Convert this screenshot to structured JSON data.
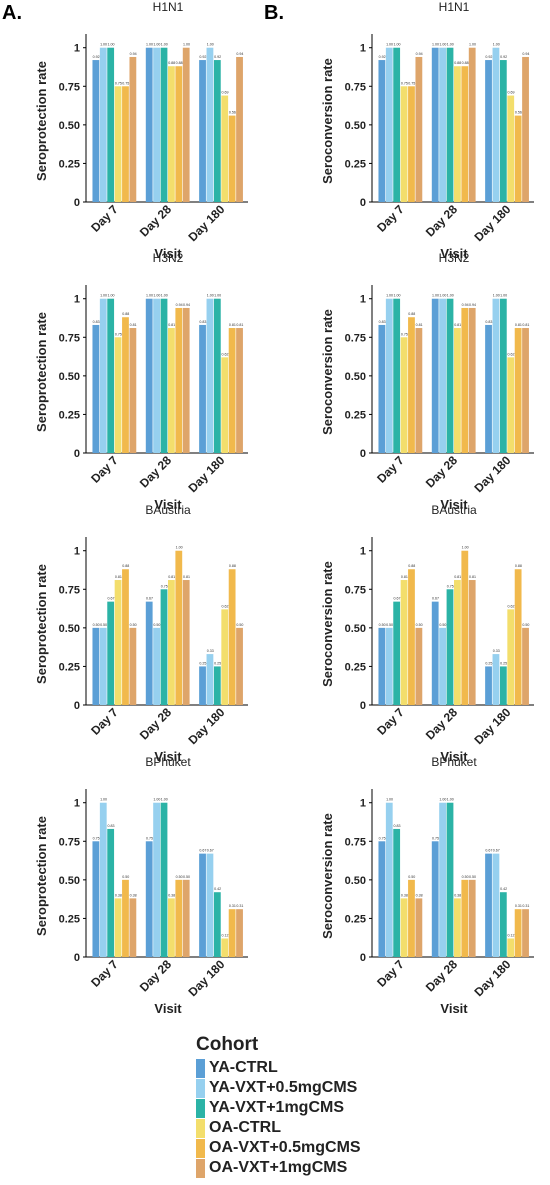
{
  "panel_letters": [
    "A.",
    "B."
  ],
  "legend": {
    "title": "Cohort",
    "entries": [
      {
        "label": "YA-CTRL",
        "color": "#5b9fd6"
      },
      {
        "label": "YA-VXT+0.5mgCMS",
        "color": "#96d0ef"
      },
      {
        "label": "YA-VXT+1mgCMS",
        "color": "#2bb3a6"
      },
      {
        "label": "OA-CTRL",
        "color": "#f3de6c"
      },
      {
        "label": "OA-VXT+0.5mgCMS",
        "color": "#f1b94c"
      },
      {
        "label": "OA-VXT+1mgCMS",
        "color": "#dea56a"
      }
    ]
  },
  "chart_data": [
    {
      "type": "bar",
      "panel": "A.",
      "title": "H1N1",
      "xlabel": "Visit",
      "ylabel": "Seroprotection rate",
      "categories": [
        "Day 7",
        "Day 28",
        "Day 180"
      ],
      "ylim": [
        0,
        1.05
      ],
      "yticks": [
        "0",
        "0.25",
        "0.50",
        "0.75",
        "1"
      ],
      "series": [
        {
          "name": "YA-CTRL",
          "values": [
            0.92,
            1.0,
            0.92
          ]
        },
        {
          "name": "YA-VXT+0.5mgCMS",
          "values": [
            1.0,
            1.0,
            1.0
          ]
        },
        {
          "name": "YA-VXT+1mgCMS",
          "values": [
            1.0,
            1.0,
            0.92
          ]
        },
        {
          "name": "OA-CTRL",
          "values": [
            0.75,
            0.88,
            0.69
          ]
        },
        {
          "name": "OA-VXT+0.5mgCMS",
          "values": [
            0.75,
            0.88,
            0.56
          ]
        },
        {
          "name": "OA-VXT+1mgCMS",
          "values": [
            0.94,
            1.0,
            0.94
          ]
        }
      ]
    },
    {
      "type": "bar",
      "panel": "B.",
      "title": "H1N1",
      "xlabel": "Visit",
      "ylabel": "Seroconversion rate",
      "categories": [
        "Day 7",
        "Day 28",
        "Day 180"
      ],
      "ylim": [
        0,
        1.05
      ],
      "yticks": [
        "0",
        "0.25",
        "0.50",
        "0.75",
        "1"
      ],
      "series": [
        {
          "name": "YA-CTRL",
          "values": [
            0.92,
            1.0,
            0.92
          ]
        },
        {
          "name": "YA-VXT+0.5mgCMS",
          "values": [
            1.0,
            1.0,
            1.0
          ]
        },
        {
          "name": "YA-VXT+1mgCMS",
          "values": [
            1.0,
            1.0,
            0.92
          ]
        },
        {
          "name": "OA-CTRL",
          "values": [
            0.75,
            0.88,
            0.69
          ]
        },
        {
          "name": "OA-VXT+0.5mgCMS",
          "values": [
            0.75,
            0.88,
            0.56
          ]
        },
        {
          "name": "OA-VXT+1mgCMS",
          "values": [
            0.94,
            1.0,
            0.94
          ]
        }
      ]
    },
    {
      "type": "bar",
      "panel": "A.",
      "title": "H3N2",
      "xlabel": "Visit",
      "ylabel": "Seroprotection rate",
      "categories": [
        "Day 7",
        "Day 28",
        "Day 180"
      ],
      "ylim": [
        0,
        1.05
      ],
      "yticks": [
        "0",
        "0.25",
        "0.50",
        "0.75",
        "1"
      ],
      "series": [
        {
          "name": "YA-CTRL",
          "values": [
            0.83,
            1.0,
            0.83
          ]
        },
        {
          "name": "YA-VXT+0.5mgCMS",
          "values": [
            1.0,
            1.0,
            1.0
          ]
        },
        {
          "name": "YA-VXT+1mgCMS",
          "values": [
            1.0,
            1.0,
            1.0
          ]
        },
        {
          "name": "OA-CTRL",
          "values": [
            0.75,
            0.81,
            0.62
          ]
        },
        {
          "name": "OA-VXT+0.5mgCMS",
          "values": [
            0.88,
            0.94,
            0.81
          ]
        },
        {
          "name": "OA-VXT+1mgCMS",
          "values": [
            0.81,
            0.94,
            0.81
          ]
        }
      ]
    },
    {
      "type": "bar",
      "panel": "B.",
      "title": "H3N2",
      "xlabel": "Visit",
      "ylabel": "Seroconversion rate",
      "categories": [
        "Day 7",
        "Day 28",
        "Day 180"
      ],
      "ylim": [
        0,
        1.05
      ],
      "yticks": [
        "0",
        "0.25",
        "0.50",
        "0.75",
        "1"
      ],
      "series": [
        {
          "name": "YA-CTRL",
          "values": [
            0.83,
            1.0,
            0.83
          ]
        },
        {
          "name": "YA-VXT+0.5mgCMS",
          "values": [
            1.0,
            1.0,
            1.0
          ]
        },
        {
          "name": "YA-VXT+1mgCMS",
          "values": [
            1.0,
            1.0,
            1.0
          ]
        },
        {
          "name": "OA-CTRL",
          "values": [
            0.75,
            0.81,
            0.62
          ]
        },
        {
          "name": "OA-VXT+0.5mgCMS",
          "values": [
            0.88,
            0.94,
            0.81
          ]
        },
        {
          "name": "OA-VXT+1mgCMS",
          "values": [
            0.81,
            0.94,
            0.81
          ]
        }
      ]
    },
    {
      "type": "bar",
      "panel": "A.",
      "title": "BAustria",
      "xlabel": "Visit",
      "ylabel": "Seroprotection rate",
      "categories": [
        "Day 7",
        "Day 28",
        "Day 180"
      ],
      "ylim": [
        0,
        1.05
      ],
      "yticks": [
        "0",
        "0.25",
        "0.50",
        "0.75",
        "1"
      ],
      "series": [
        {
          "name": "YA-CTRL",
          "values": [
            0.5,
            0.67,
            0.25
          ]
        },
        {
          "name": "YA-VXT+0.5mgCMS",
          "values": [
            0.5,
            0.5,
            0.33
          ]
        },
        {
          "name": "YA-VXT+1mgCMS",
          "values": [
            0.67,
            0.75,
            0.25
          ]
        },
        {
          "name": "OA-CTRL",
          "values": [
            0.81,
            0.81,
            0.62
          ]
        },
        {
          "name": "OA-VXT+0.5mgCMS",
          "values": [
            0.88,
            1.0,
            0.88
          ]
        },
        {
          "name": "OA-VXT+1mgCMS",
          "values": [
            0.5,
            0.81,
            0.5
          ]
        }
      ]
    },
    {
      "type": "bar",
      "panel": "B.",
      "title": "BAustria",
      "xlabel": "Visit",
      "ylabel": "Seroconversion rate",
      "categories": [
        "Day 7",
        "Day 28",
        "Day 180"
      ],
      "ylim": [
        0,
        1.05
      ],
      "yticks": [
        "0",
        "0.25",
        "0.50",
        "0.75",
        "1"
      ],
      "series": [
        {
          "name": "YA-CTRL",
          "values": [
            0.5,
            0.67,
            0.25
          ]
        },
        {
          "name": "YA-VXT+0.5mgCMS",
          "values": [
            0.5,
            0.5,
            0.33
          ]
        },
        {
          "name": "YA-VXT+1mgCMS",
          "values": [
            0.67,
            0.75,
            0.25
          ]
        },
        {
          "name": "OA-CTRL",
          "values": [
            0.81,
            0.81,
            0.62
          ]
        },
        {
          "name": "OA-VXT+0.5mgCMS",
          "values": [
            0.88,
            1.0,
            0.88
          ]
        },
        {
          "name": "OA-VXT+1mgCMS",
          "values": [
            0.5,
            0.81,
            0.5
          ]
        }
      ]
    },
    {
      "type": "bar",
      "panel": "A.",
      "title": "BPhuket",
      "xlabel": "Visit",
      "ylabel": "Seroprotection rate",
      "categories": [
        "Day 7",
        "Day 28",
        "Day 180"
      ],
      "ylim": [
        0,
        1.05
      ],
      "yticks": [
        "0",
        "0.25",
        "0.50",
        "0.75",
        "1"
      ],
      "series": [
        {
          "name": "YA-CTRL",
          "values": [
            0.75,
            0.75,
            0.67
          ]
        },
        {
          "name": "YA-VXT+0.5mgCMS",
          "values": [
            1.0,
            1.0,
            0.67
          ]
        },
        {
          "name": "YA-VXT+1mgCMS",
          "values": [
            0.83,
            1.0,
            0.42
          ]
        },
        {
          "name": "OA-CTRL",
          "values": [
            0.38,
            0.38,
            0.12
          ]
        },
        {
          "name": "OA-VXT+0.5mgCMS",
          "values": [
            0.5,
            0.5,
            0.31
          ]
        },
        {
          "name": "OA-VXT+1mgCMS",
          "values": [
            0.38,
            0.5,
            0.31
          ]
        }
      ]
    },
    {
      "type": "bar",
      "panel": "B.",
      "title": "BPhuket",
      "xlabel": "Visit",
      "ylabel": "Seroconversion rate",
      "categories": [
        "Day 7",
        "Day 28",
        "Day 180"
      ],
      "ylim": [
        0,
        1.05
      ],
      "yticks": [
        "0",
        "0.25",
        "0.50",
        "0.75",
        "1"
      ],
      "series": [
        {
          "name": "YA-CTRL",
          "values": [
            0.75,
            0.75,
            0.67
          ]
        },
        {
          "name": "YA-VXT+0.5mgCMS",
          "values": [
            1.0,
            1.0,
            0.67
          ]
        },
        {
          "name": "YA-VXT+1mgCMS",
          "values": [
            0.83,
            1.0,
            0.42
          ]
        },
        {
          "name": "OA-CTRL",
          "values": [
            0.38,
            0.38,
            0.12
          ]
        },
        {
          "name": "OA-VXT+0.5mgCMS",
          "values": [
            0.5,
            0.5,
            0.31
          ]
        },
        {
          "name": "OA-VXT+1mgCMS",
          "values": [
            0.38,
            0.5,
            0.31
          ]
        }
      ]
    }
  ]
}
